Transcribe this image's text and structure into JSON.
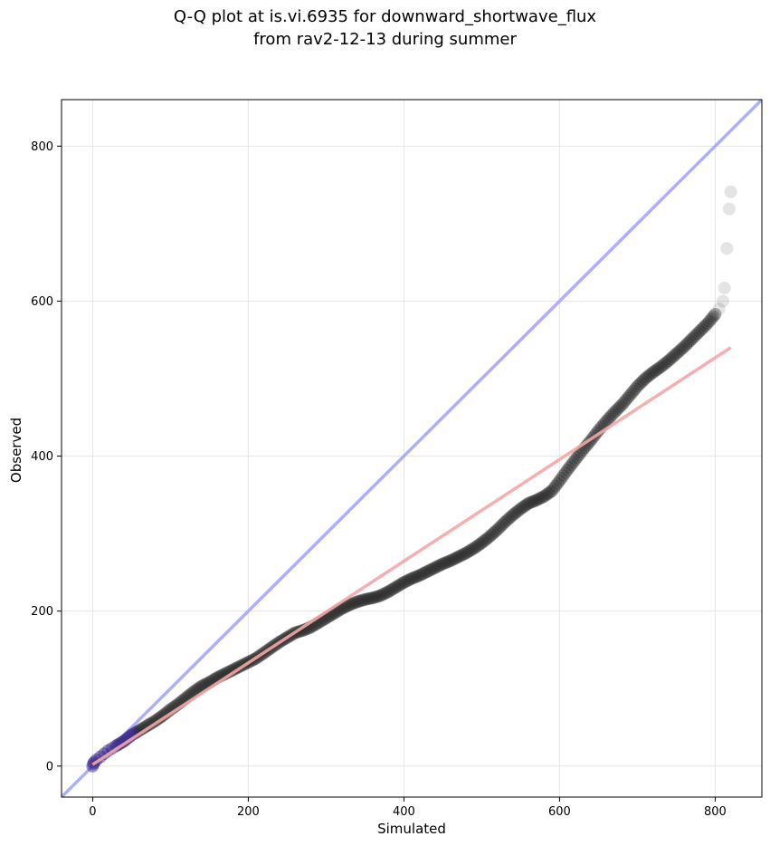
{
  "chart_data": {
    "type": "scatter",
    "title_line1": "Q-Q plot at is.vi.6935 for downward_shortwave_flux",
    "title_line2": "from rav2-12-13 during summer",
    "xlabel": "Simulated",
    "ylabel": "Observed",
    "xlim": [
      -40,
      860
    ],
    "ylim": [
      -40,
      860
    ],
    "xticks": [
      0,
      200,
      400,
      600,
      800
    ],
    "yticks": [
      0,
      200,
      400,
      600,
      800
    ],
    "grid": true,
    "identity_line": {
      "color": "#aaaaff",
      "from": [
        -40,
        -40
      ],
      "to": [
        860,
        860
      ]
    },
    "fit_line": {
      "color": "#f4a6a6",
      "from": [
        0,
        2
      ],
      "to": [
        820,
        540
      ]
    },
    "points_color": "#222222",
    "low_quantile_color": "#3b2a8a",
    "quantile_points": [
      [
        0,
        0
      ],
      [
        1,
        3
      ],
      [
        2,
        5
      ],
      [
        5,
        8
      ],
      [
        10,
        12
      ],
      [
        15,
        16
      ],
      [
        20,
        20
      ],
      [
        25,
        23
      ],
      [
        30,
        26
      ],
      [
        40,
        32
      ],
      [
        50,
        40
      ],
      [
        60,
        46
      ],
      [
        70,
        52
      ],
      [
        80,
        58
      ],
      [
        90,
        65
      ],
      [
        100,
        73
      ],
      [
        110,
        80
      ],
      [
        120,
        88
      ],
      [
        130,
        96
      ],
      [
        140,
        103
      ],
      [
        150,
        108
      ],
      [
        160,
        114
      ],
      [
        170,
        119
      ],
      [
        180,
        124
      ],
      [
        190,
        129
      ],
      [
        200,
        134
      ],
      [
        210,
        139
      ],
      [
        220,
        146
      ],
      [
        230,
        153
      ],
      [
        240,
        160
      ],
      [
        250,
        166
      ],
      [
        260,
        172
      ],
      [
        270,
        175
      ],
      [
        280,
        179
      ],
      [
        290,
        185
      ],
      [
        300,
        191
      ],
      [
        310,
        197
      ],
      [
        320,
        203
      ],
      [
        330,
        208
      ],
      [
        340,
        212
      ],
      [
        350,
        215
      ],
      [
        360,
        217
      ],
      [
        370,
        220
      ],
      [
        380,
        225
      ],
      [
        390,
        231
      ],
      [
        400,
        237
      ],
      [
        410,
        242
      ],
      [
        420,
        246
      ],
      [
        430,
        251
      ],
      [
        440,
        256
      ],
      [
        450,
        261
      ],
      [
        460,
        265
      ],
      [
        470,
        270
      ],
      [
        480,
        275
      ],
      [
        490,
        281
      ],
      [
        500,
        288
      ],
      [
        510,
        296
      ],
      [
        520,
        305
      ],
      [
        530,
        315
      ],
      [
        540,
        324
      ],
      [
        550,
        332
      ],
      [
        560,
        339
      ],
      [
        570,
        343
      ],
      [
        580,
        348
      ],
      [
        590,
        355
      ],
      [
        600,
        368
      ],
      [
        610,
        382
      ],
      [
        620,
        395
      ],
      [
        630,
        408
      ],
      [
        640,
        420
      ],
      [
        650,
        433
      ],
      [
        660,
        445
      ],
      [
        670,
        456
      ],
      [
        680,
        466
      ],
      [
        690,
        478
      ],
      [
        700,
        490
      ],
      [
        710,
        500
      ],
      [
        720,
        508
      ],
      [
        730,
        515
      ],
      [
        740,
        523
      ],
      [
        750,
        532
      ],
      [
        760,
        541
      ],
      [
        770,
        551
      ],
      [
        780,
        561
      ],
      [
        790,
        571
      ],
      [
        800,
        583
      ],
      [
        805,
        590
      ],
      [
        810,
        600
      ],
      [
        812,
        617
      ],
      [
        815,
        668
      ],
      [
        818,
        719
      ],
      [
        820,
        741
      ]
    ]
  }
}
